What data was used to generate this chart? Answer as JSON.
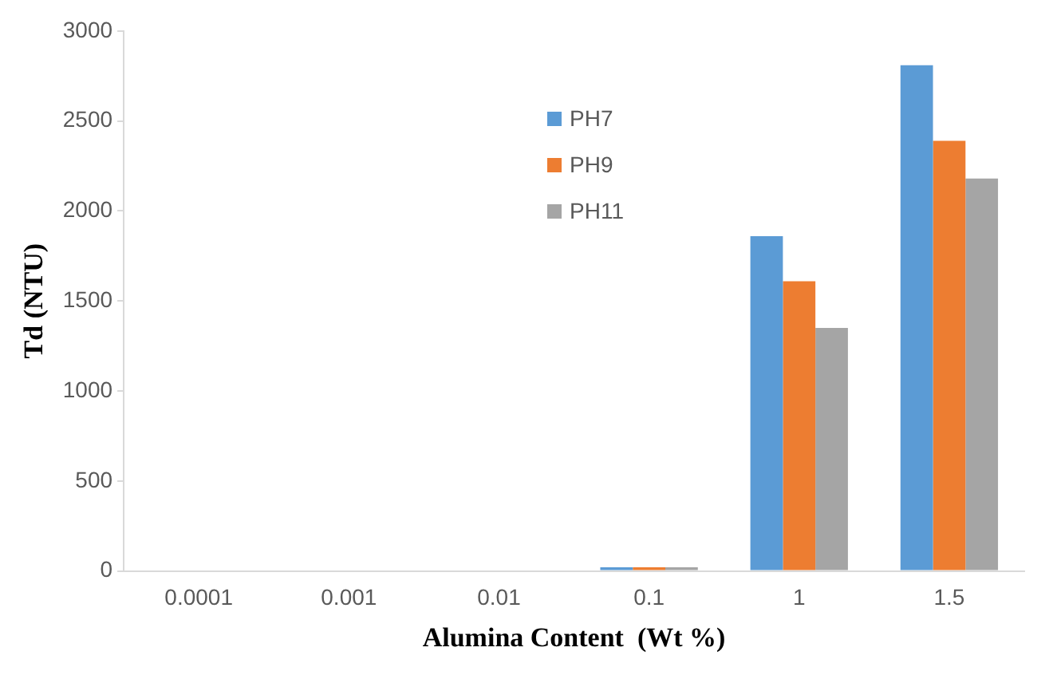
{
  "chart_data": {
    "type": "bar",
    "xlabel": "Alumina Content  (Wt %)",
    "ylabel": "Td (NTU)",
    "categories": [
      "0.0001",
      "0.001",
      "0.01",
      "0.1",
      "1",
      "1.5"
    ],
    "series": [
      {
        "name": "PH7",
        "color": "#5b9bd5",
        "values": [
          0,
          0,
          0,
          20,
          1860,
          2810
        ]
      },
      {
        "name": "PH9",
        "color": "#ed7d31",
        "values": [
          0,
          0,
          0,
          20,
          1610,
          2390
        ]
      },
      {
        "name": "PH11",
        "color": "#a5a5a5",
        "values": [
          0,
          0,
          0,
          20,
          1350,
          2180
        ]
      }
    ],
    "ylim": [
      0,
      3000
    ],
    "yticks": [
      0,
      500,
      1000,
      1500,
      2000,
      2500,
      3000
    ],
    "grid": false,
    "legend": "top"
  }
}
